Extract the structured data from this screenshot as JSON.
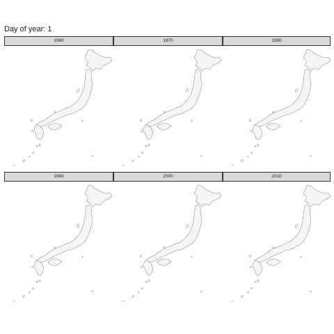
{
  "title": "Day of year: 1",
  "chart_data": {
    "type": "map",
    "title": "Day of year: 1",
    "region": "Japan",
    "facets": [
      "1960",
      "1970",
      "1980",
      "1990",
      "2000",
      "2010"
    ],
    "facet_layout": {
      "rows": 2,
      "cols": 3
    },
    "fill_color": "#f5f5f5",
    "outline_color": "#8c8c8c",
    "strip_color": "#d9d9d9",
    "data_layer": "none visible"
  }
}
